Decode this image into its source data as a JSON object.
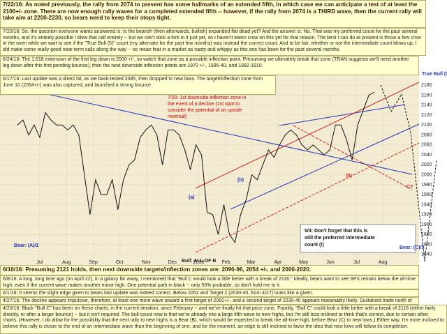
{
  "chart_data": {
    "type": "line",
    "x": [
      0,
      1,
      2,
      3,
      4,
      5,
      6,
      7,
      8,
      9,
      10,
      11,
      12,
      13,
      14,
      15,
      16,
      17,
      18,
      19,
      20,
      21,
      22,
      23,
      24,
      25,
      26,
      27,
      28,
      29,
      30,
      31,
      32,
      33,
      34,
      35,
      36,
      37,
      38,
      39,
      40,
      41,
      42,
      43,
      44,
      45,
      46,
      47,
      48,
      49,
      50,
      51,
      52,
      53,
      54,
      55,
      56,
      57,
      58,
      59,
      60,
      61,
      62,
      63,
      64
    ],
    "values": [
      2100,
      2110,
      2080,
      2100,
      2075,
      2125,
      2110,
      2100,
      2100,
      2090,
      2100,
      2080,
      2000,
      1920,
      1990,
      1960,
      1960,
      1990,
      1930,
      1990,
      2020,
      2030,
      2075,
      2090,
      2100,
      2080,
      2020,
      2090,
      2090,
      2080,
      2050,
      2010,
      2060,
      2040,
      1925,
      1920,
      1880,
      1940,
      1880,
      1864,
      1920,
      1950,
      2000,
      1990,
      2020,
      2050,
      2035,
      2060,
      2080,
      2090,
      2080,
      2060,
      2050,
      2060,
      2050,
      2040,
      2050,
      2100,
      2100,
      2070,
      2030,
      2100,
      2130,
      2160,
      2166
    ],
    "color": "#111111",
    "xlim": [
      0,
      72
    ],
    "xticks": [
      {
        "value": 4,
        "label": "Jul"
      },
      {
        "value": 8.8,
        "label": "Aug"
      },
      {
        "value": 13.6,
        "label": "Sep"
      },
      {
        "value": 18.3,
        "label": "Oct"
      },
      {
        "value": 23.1,
        "label": "Nov"
      },
      {
        "value": 27.8,
        "label": "Dec"
      },
      {
        "value": 32.5,
        "label": "2016"
      },
      {
        "value": 37.4,
        "label": "Feb"
      },
      {
        "value": 41.9,
        "label": "Mar"
      },
      {
        "value": 46.7,
        "label": "Apr"
      },
      {
        "value": 51.3,
        "label": "May"
      },
      {
        "value": 56.1,
        "label": "Jun"
      },
      {
        "value": 60.8,
        "label": "Jul"
      },
      {
        "value": 65.5,
        "label": "Aug"
      }
    ],
    "ylim": [
      1830,
      2190
    ],
    "yticks": [
      1840,
      1860,
      1880,
      1900,
      1920,
      1940,
      1960,
      1980,
      2000,
      2020,
      2040,
      2060,
      2080,
      2100,
      2120,
      2140,
      2160,
      2180
    ],
    "grid": true
  },
  "annotations": [
    "7/20: 1st downside inflection zone in the event of a decline (1st spot to consider the potential of an upside reversal)",
    "Bull: A",
    "Bear: (A)/1",
    "Bull: ALL OF B",
    "Bear: (C)/3",
    "True Bull (5)",
    "(c) B",
    "C?",
    "(h)",
    "(a)",
    "(b)"
  ],
  "callout": "5/4: Don't forget that this is still the preferred intermediate count (!)",
  "notes_top": [
    "7/22/16: As noted previously, the rally from 2074 to present has some hallmarks of an extended fifth, in which case we can anticipate a test of at least the 2100+/- zone. There are now enough rally waves for a completed extended fifth -- however, if the rally from 2074 is a THIRD wave, then the current rally will take aim at 2200-2230, so bears need to keep their stops tight.",
    "7/20/16: So, the question everyone wants answered is: Is the bearish (then afterwards, bullish) expanded flat dead yet? And the answer is: No. That was my preferred count for the past several months, and it's entirely possible I blew that call entirely -- but we can't stick a fork in it just yet, so I haven't eaten crow on this yet for that reason. The best I can do at present is throw a few crow in the oven while we wait to see if the \"True Bull (5)\" count (my alternate for the past few months) was instead the correct count. And to be fair, whether or not the intermediate count blows up, I did make some really good near-term calls along the way -- no mean feat in a market as nasty and whippy as this one has been for the past several months.",
    "6/24/16: The 1.618 extension of the first leg down is 2000 +/-, so watch that zone as a possible inflection point. Presuming we ultimately break that zone (TRAN suggests we'll need another leg down after this first pending bounce), then the next downside inflection points are 1970 +/-, 1935-40, and 1892-1910.",
    "6/17/16: Last update was a direct hit, as we back-tested 2085, then dropped to new lows. The target/inflection zone from June 10 (2054+/-) was also captured, and launched a strong bounce."
  ],
  "notes_bottom": [
    "6/10/16: Presuming 2121 holds, then next downside targets/inflection zones are: 2090-96, 2054 +/-, and 2000-2020.",
    "6/8/16: A long, long time ago (on April 22), in a galaxy far away, I mentioned that \"Bull C would look a little better with a break of 2116.\" Ideally, bears want to see SPX remain below the all-time high, even if the current wave makes another minor high. One potential path in black -- only 50% probable, so don't hold me to it.",
    "6/1/16: It seems the slight edge given to bears last update was indeed correct. Below 2052 and Target 2 (2030-40, from 4/27) looks like a given.",
    "4/27/16: The decline appears impulsive, therefore, at least one more wave toward a first target of 2062+/-, and a second target of 2030-40 appears reasonably likely. Sustained trade north of 2112 invalidates.",
    "4/20/16: Black \"Bull C\" has been on these charts, in the current iteration, since February -- and we've finally hit that price zone. Frankly, \"Bull C\" could look a little better with a break of 2116 (either fairly directly, or after a larger bounce) -- but it isn't required. The bull count now is that we're already into a large fifth wave to new highs, but I'm still less inclined to think that's correct, due to certain other charts. (However, I do allow for the possibility that the next rally to new highs is a Bear (B), which would be expected to break the all-time-high, before Bear (C) to new lows.) Either way, I'm more inclined to believe this rally is closer to the end of an intermediate wave than the beginning of one, and for the moment, an edge is still inclined to favor the idea that new lows will follow its completion."
  ]
}
